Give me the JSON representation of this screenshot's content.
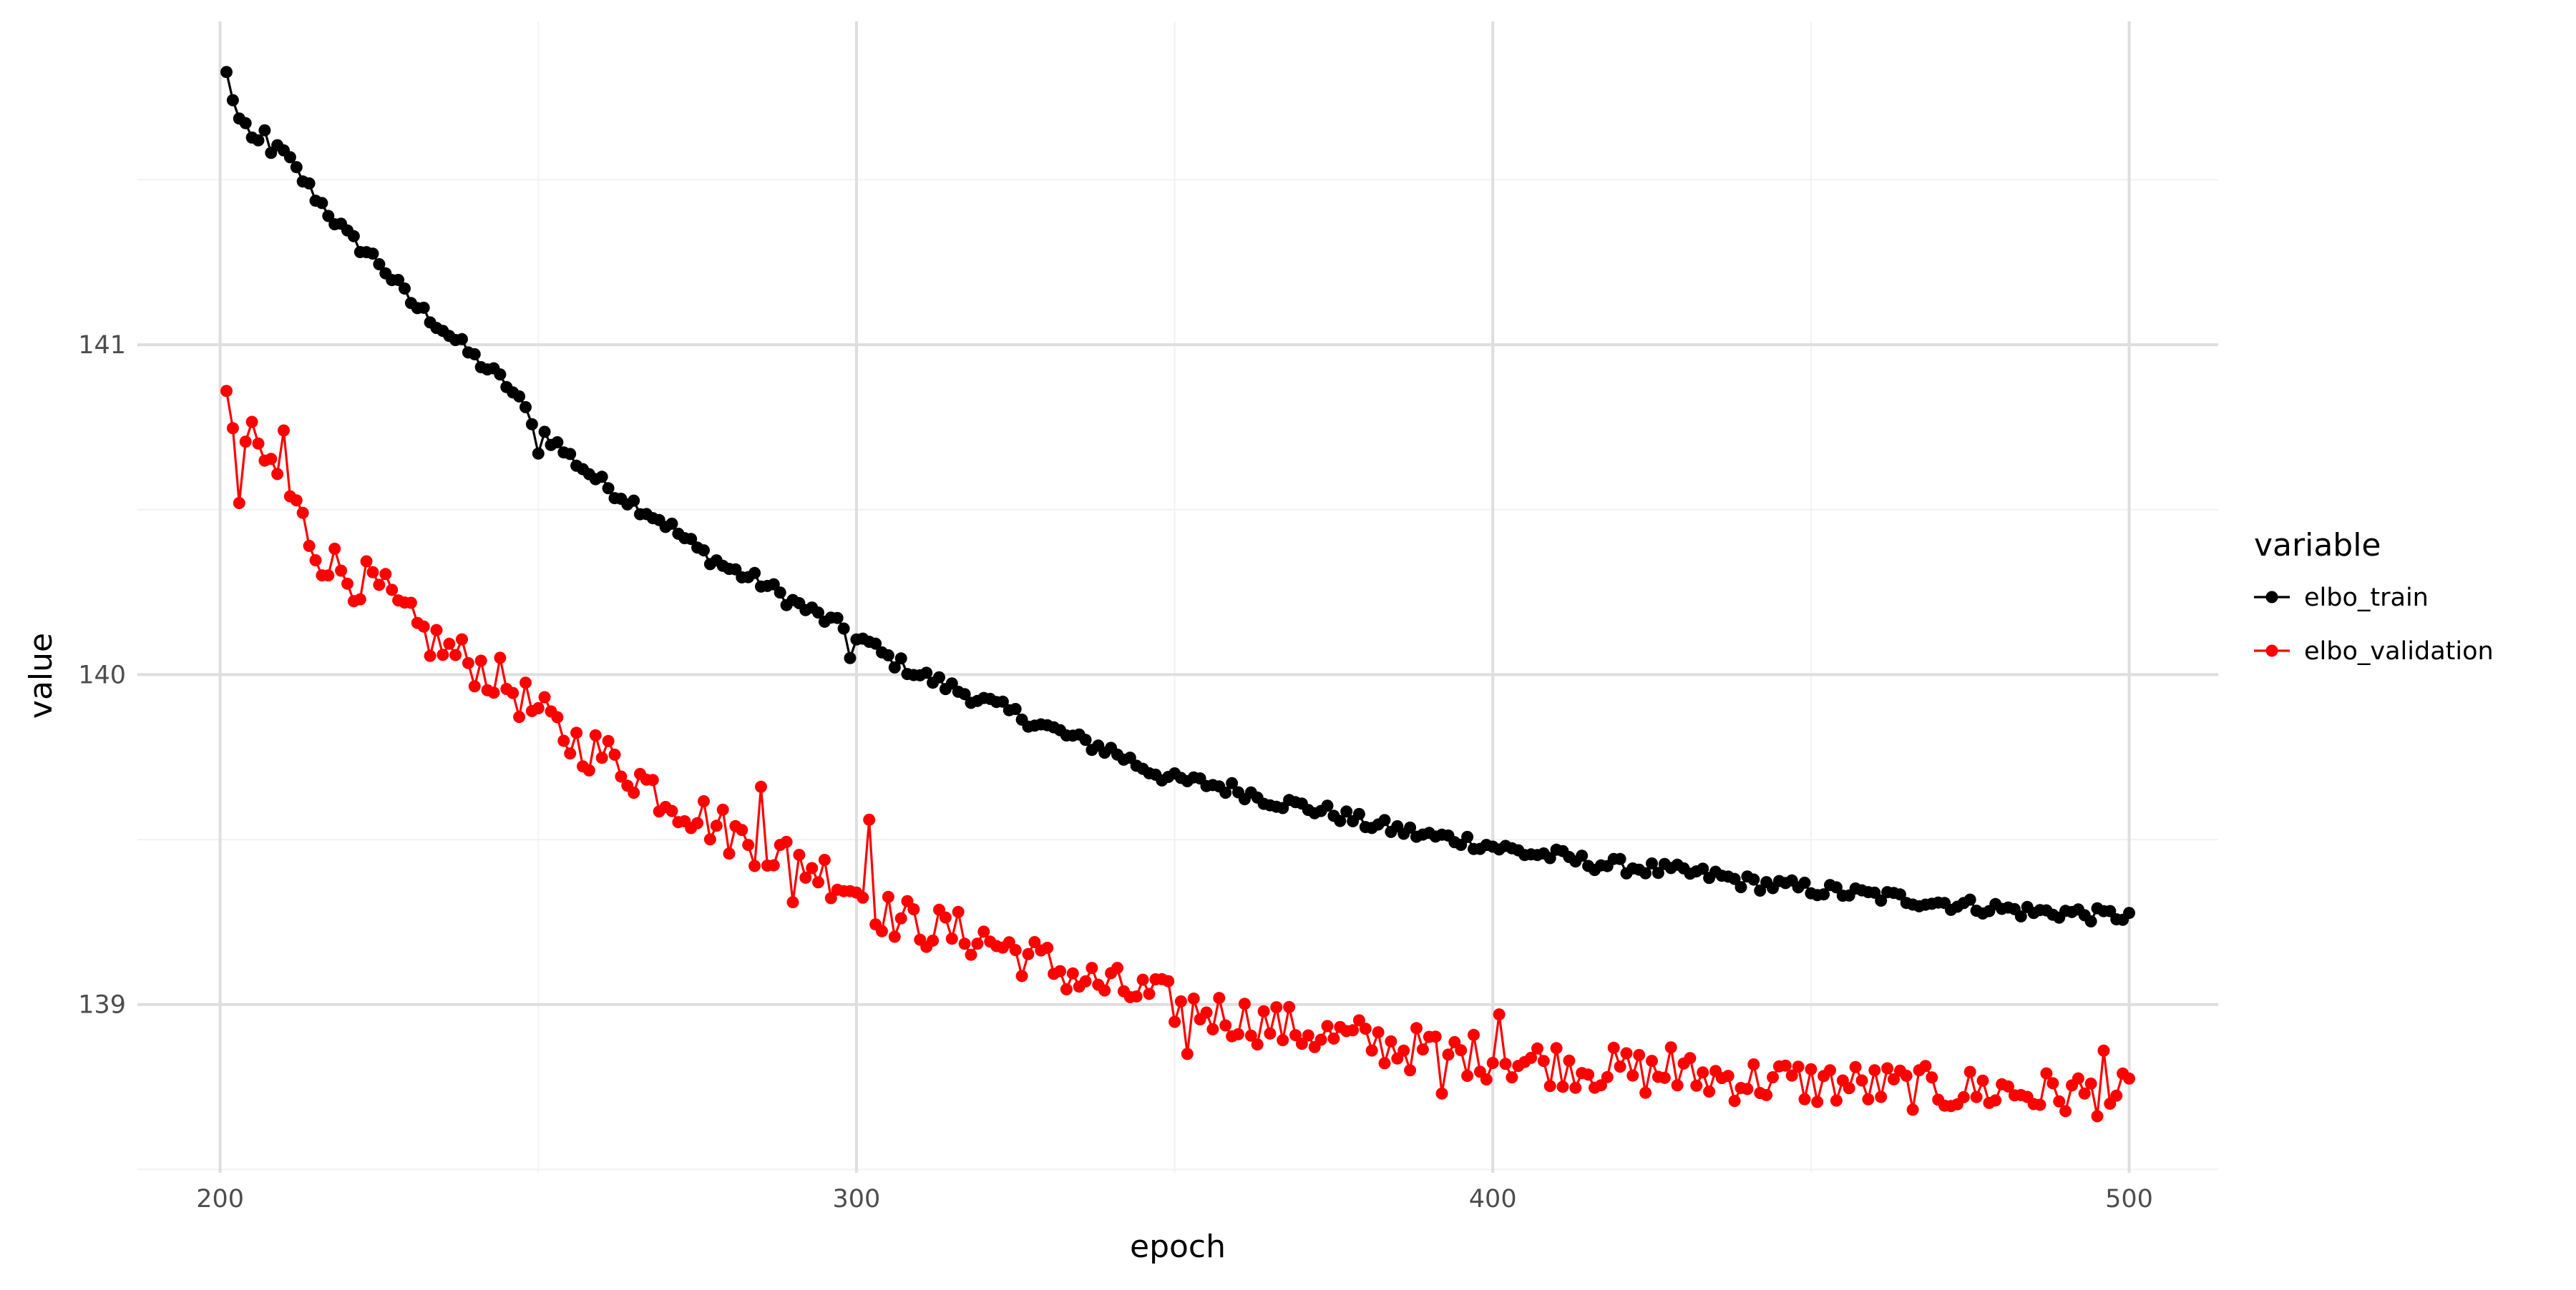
{
  "chart_data": {
    "type": "line",
    "title": "",
    "xlabel": "epoch",
    "ylabel": "value",
    "xlim": [
      187,
      514
    ],
    "ylim": [
      138.49,
      141.98
    ],
    "x_ticks": [
      200,
      300,
      400,
      500
    ],
    "x_tick_labels": [
      "200",
      "300",
      "400",
      "500"
    ],
    "y_ticks": [
      139,
      140,
      141
    ],
    "y_tick_labels": [
      "139",
      "140",
      "141"
    ],
    "grid": true,
    "markers": true,
    "legend": {
      "title": "variable",
      "placement": "right"
    },
    "x_start": 201,
    "x_end": 500,
    "series": [
      {
        "name": "elbo_train",
        "color": "#000000",
        "anchors": [
          [
            201,
            141.82
          ],
          [
            203,
            141.68
          ],
          [
            205,
            141.62
          ],
          [
            210,
            141.58
          ],
          [
            215,
            141.45
          ],
          [
            220,
            141.33
          ],
          [
            225,
            141.25
          ],
          [
            230,
            141.13
          ],
          [
            235,
            141.05
          ],
          [
            240,
            140.96
          ],
          [
            245,
            140.88
          ],
          [
            250,
            140.75
          ],
          [
            255,
            140.66
          ],
          [
            260,
            140.58
          ],
          [
            265,
            140.52
          ],
          [
            270,
            140.46
          ],
          [
            275,
            140.38
          ],
          [
            280,
            140.32
          ],
          [
            285,
            140.28
          ],
          [
            290,
            140.22
          ],
          [
            295,
            140.17
          ],
          [
            300,
            140.12
          ],
          [
            305,
            140.05
          ],
          [
            310,
            140.0
          ],
          [
            315,
            139.96
          ],
          [
            320,
            139.92
          ],
          [
            325,
            139.88
          ],
          [
            330,
            139.84
          ],
          [
            335,
            139.8
          ],
          [
            340,
            139.77
          ],
          [
            345,
            139.72
          ],
          [
            350,
            139.68
          ],
          [
            355,
            139.67
          ],
          [
            360,
            139.65
          ],
          [
            365,
            139.62
          ],
          [
            370,
            139.6
          ],
          [
            375,
            139.58
          ],
          [
            380,
            139.55
          ],
          [
            385,
            139.53
          ],
          [
            390,
            139.51
          ],
          [
            395,
            139.5
          ],
          [
            400,
            139.48
          ],
          [
            405,
            139.46
          ],
          [
            410,
            139.45
          ],
          [
            415,
            139.43
          ],
          [
            420,
            139.42
          ],
          [
            425,
            139.41
          ],
          [
            430,
            139.4
          ],
          [
            435,
            139.39
          ],
          [
            440,
            139.37
          ],
          [
            445,
            139.36
          ],
          [
            450,
            139.35
          ],
          [
            455,
            139.34
          ],
          [
            460,
            139.33
          ],
          [
            465,
            139.32
          ],
          [
            470,
            139.31
          ],
          [
            475,
            139.3
          ],
          [
            480,
            139.29
          ],
          [
            485,
            139.28
          ],
          [
            490,
            139.28
          ],
          [
            495,
            139.27
          ],
          [
            500,
            139.27
          ]
        ],
        "noise": 0.022,
        "outliers": [
          [
            299,
            140.05
          ],
          [
            250,
            140.67
          ],
          [
            207,
            141.65
          ]
        ]
      },
      {
        "name": "elbo_validation",
        "color": "#ff0000",
        "anchors": [
          [
            201,
            140.8
          ],
          [
            203,
            140.72
          ],
          [
            205,
            140.7
          ],
          [
            210,
            140.58
          ],
          [
            215,
            140.38
          ],
          [
            220,
            140.3
          ],
          [
            225,
            140.26
          ],
          [
            230,
            140.15
          ],
          [
            235,
            140.08
          ],
          [
            240,
            140.03
          ],
          [
            245,
            139.97
          ],
          [
            250,
            139.88
          ],
          [
            255,
            139.8
          ],
          [
            260,
            139.76
          ],
          [
            265,
            139.7
          ],
          [
            270,
            139.63
          ],
          [
            275,
            139.58
          ],
          [
            280,
            139.52
          ],
          [
            285,
            139.48
          ],
          [
            290,
            139.44
          ],
          [
            295,
            139.4
          ],
          [
            300,
            139.35
          ],
          [
            305,
            139.27
          ],
          [
            310,
            139.24
          ],
          [
            315,
            139.22
          ],
          [
            320,
            139.2
          ],
          [
            325,
            139.16
          ],
          [
            330,
            139.12
          ],
          [
            335,
            139.08
          ],
          [
            340,
            139.05
          ],
          [
            345,
            139.03
          ],
          [
            350,
            139.0
          ],
          [
            355,
            138.98
          ],
          [
            360,
            138.96
          ],
          [
            365,
            138.94
          ],
          [
            370,
            138.92
          ],
          [
            375,
            138.9
          ],
          [
            380,
            138.89
          ],
          [
            385,
            138.87
          ],
          [
            390,
            138.86
          ],
          [
            395,
            138.85
          ],
          [
            400,
            138.84
          ],
          [
            405,
            138.83
          ],
          [
            410,
            138.82
          ],
          [
            415,
            138.81
          ],
          [
            420,
            138.8
          ],
          [
            425,
            138.79
          ],
          [
            430,
            138.78
          ],
          [
            435,
            138.78
          ],
          [
            440,
            138.77
          ],
          [
            445,
            138.77
          ],
          [
            450,
            138.76
          ],
          [
            455,
            138.76
          ],
          [
            460,
            138.75
          ],
          [
            465,
            138.75
          ],
          [
            470,
            138.74
          ],
          [
            475,
            138.74
          ],
          [
            480,
            138.74
          ],
          [
            485,
            138.73
          ],
          [
            490,
            138.73
          ],
          [
            495,
            138.73
          ],
          [
            500,
            138.72
          ]
        ],
        "noise": 0.07,
        "outliers": [
          [
            203,
            140.52
          ],
          [
            210,
            140.74
          ],
          [
            302,
            139.56
          ],
          [
            285,
            139.66
          ],
          [
            290,
            139.31
          ],
          [
            401,
            138.97
          ],
          [
            496,
            138.86
          ],
          [
            428,
            138.87
          ],
          [
            392,
            138.73
          ],
          [
            352,
            138.85
          ]
        ]
      }
    ]
  }
}
